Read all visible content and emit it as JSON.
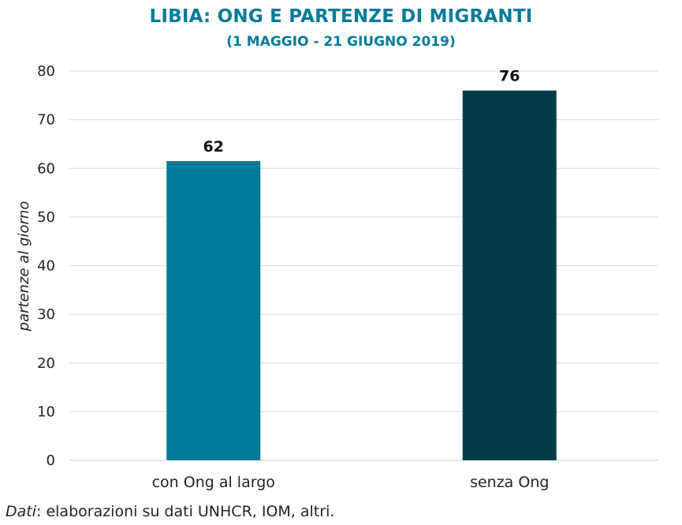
{
  "chart_data": {
    "type": "bar",
    "title": "LIBIA: ONG E PARTENZE DI MIGRANTI",
    "subtitle": "(1 MAGGIO - 21 GIUGNO 2019)",
    "categories": [
      "con Ong al largo",
      "senza Ong"
    ],
    "values": [
      61.5,
      76
    ],
    "data_labels": [
      "62",
      "76"
    ],
    "bar_colors": [
      "#007a96",
      "#003a47"
    ],
    "xlabel": "",
    "ylabel": "partenze al giorno",
    "ylim": [
      0,
      80
    ],
    "yticks": [
      0,
      10,
      20,
      30,
      40,
      50,
      60,
      70,
      80
    ],
    "grid": true,
    "legend": "none"
  },
  "source": {
    "lead": "Dati",
    "text": ": elaborazioni su dati UNHCR, IOM, altri."
  }
}
